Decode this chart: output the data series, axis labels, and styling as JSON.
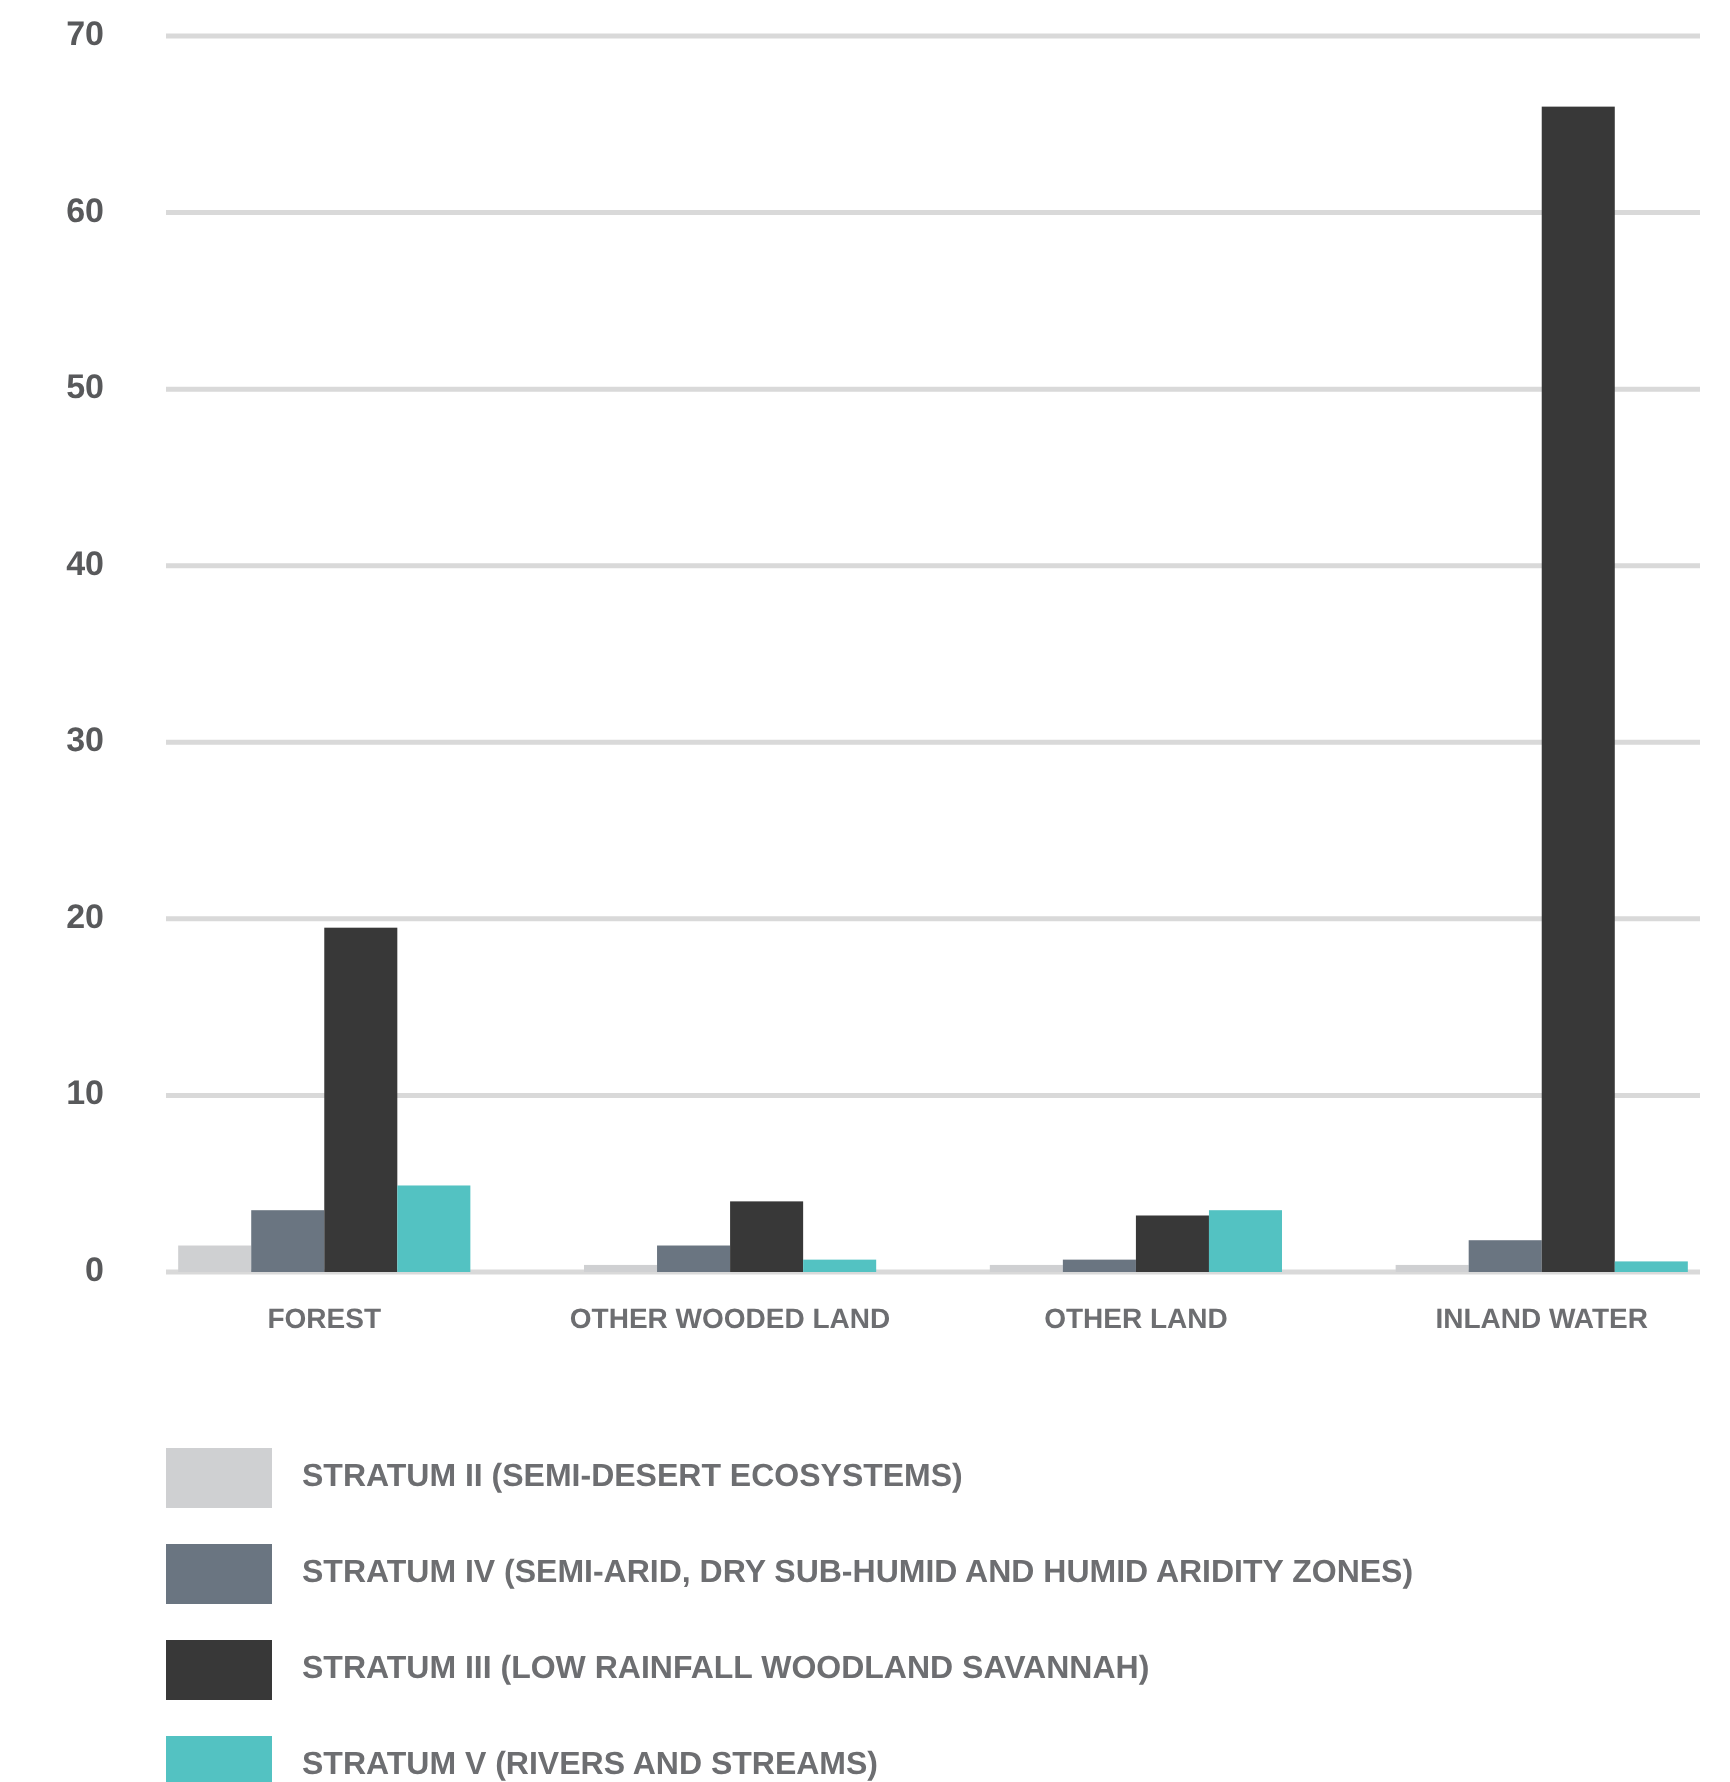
{
  "chart_data": {
    "type": "bar",
    "categories": [
      "FOREST",
      "OTHER WOODED LAND",
      "OTHER LAND",
      "INLAND WATER"
    ],
    "series": [
      {
        "name": "STRATUM II (SEMI-DESERT ECOSYSTEMS)",
        "color": "#cfd0d2",
        "values": [
          1.5,
          0.4,
          0.4,
          0.4
        ]
      },
      {
        "name": "STRATUM IV (SEMI-ARID, DRY SUB-HUMID AND HUMID ARIDITY ZONES)",
        "color": "#6a7581",
        "values": [
          3.5,
          1.5,
          0.7,
          1.8
        ]
      },
      {
        "name": "STRATUM III (LOW RAINFALL WOODLAND SAVANNAH)",
        "color": "#383838",
        "values": [
          19.5,
          4.0,
          3.2,
          66.0
        ]
      },
      {
        "name": "STRATUM V (RIVERS AND STREAMS)",
        "color": "#53c2c2",
        "values": [
          4.9,
          0.7,
          3.5,
          0.6
        ]
      }
    ],
    "ylim": [
      0,
      70
    ],
    "yticks": [
      0,
      10,
      20,
      30,
      40,
      50,
      60,
      70
    ],
    "grid": "y",
    "legend": "bottom"
  }
}
